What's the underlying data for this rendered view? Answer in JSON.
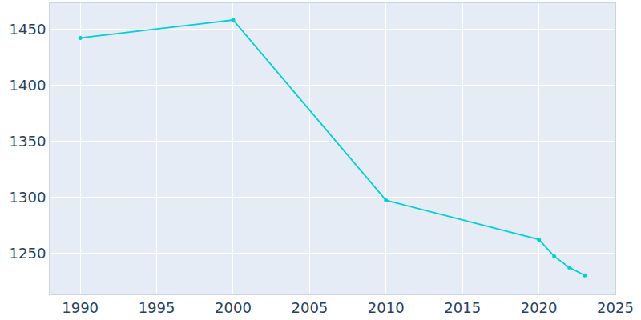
{
  "chart_data": {
    "type": "line",
    "x": [
      1990,
      2000,
      2010,
      2020,
      2021,
      2022,
      2023
    ],
    "values": [
      1442,
      1458,
      1297,
      1262,
      1247,
      1237,
      1230
    ],
    "color": "#00ced1",
    "marker": "circle",
    "xlim": [
      1988,
      2025
    ],
    "xticks": [
      1990,
      1995,
      2000,
      2005,
      2010,
      2015,
      2020,
      2025
    ],
    "ylim": [
      1213,
      1473
    ],
    "yticks": [
      1250,
      1300,
      1350,
      1400,
      1450
    ],
    "grid": true
  }
}
